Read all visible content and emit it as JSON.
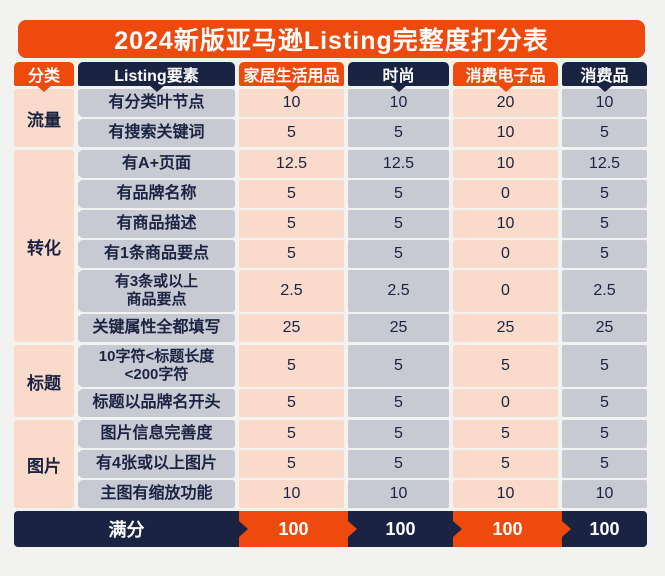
{
  "title": "2024新版亚马逊Listing完整度打分表",
  "colors": {
    "orange": "#EE4A0D",
    "navy": "#1A2342",
    "pink": "#F9DACB",
    "grey": "#C8CAD3",
    "page": "#F2F3F1",
    "text": "#1A2342"
  },
  "table": {
    "columns": [
      {
        "label": "分类",
        "theme": "orange"
      },
      {
        "label": "Listing要素",
        "theme": "navy"
      },
      {
        "label": "家居生活用品",
        "theme": "orange"
      },
      {
        "label": "时尚",
        "theme": "navy"
      },
      {
        "label": "消费电子品",
        "theme": "orange"
      },
      {
        "label": "消费品",
        "theme": "navy"
      }
    ],
    "groups": [
      {
        "category": "流量",
        "rows": [
          {
            "label": "有分类叶节点",
            "values": [
              10,
              10,
              20,
              10
            ]
          },
          {
            "label": "有搜索关键词",
            "values": [
              5,
              5,
              10,
              5
            ]
          }
        ]
      },
      {
        "category": "转化",
        "rows": [
          {
            "label": "有A+页面",
            "values": [
              12.5,
              12.5,
              10,
              12.5
            ]
          },
          {
            "label": "有品牌名称",
            "values": [
              5,
              5,
              0,
              5
            ]
          },
          {
            "label": "有商品描述",
            "values": [
              5,
              5,
              10,
              5
            ]
          },
          {
            "label": "有1条商品要点",
            "values": [
              5,
              5,
              0,
              5
            ]
          },
          {
            "label": "有3条或以上\n商品要点",
            "values": [
              2.5,
              2.5,
              0,
              2.5
            ],
            "twoline": true
          },
          {
            "label": "关键属性全都填写",
            "values": [
              25,
              25,
              25,
              25
            ]
          }
        ]
      },
      {
        "category": "标题",
        "rows": [
          {
            "label": "10字符<标题长度\n<200字符",
            "values": [
              5,
              5,
              5,
              5
            ],
            "twoline": true
          },
          {
            "label": "标题以品牌名开头",
            "values": [
              5,
              5,
              0,
              5
            ]
          }
        ]
      },
      {
        "category": "图片",
        "rows": [
          {
            "label": "图片信息完善度",
            "values": [
              5,
              5,
              5,
              5
            ]
          },
          {
            "label": "有4张或以上图片",
            "values": [
              5,
              5,
              5,
              5
            ]
          },
          {
            "label": "主图有缩放功能",
            "values": [
              10,
              10,
              10,
              10
            ]
          }
        ]
      }
    ],
    "footer": {
      "label": "满分",
      "values": [
        100,
        100,
        100,
        100
      ]
    }
  },
  "chart_data": {
    "type": "table",
    "title": "2024新版亚马逊Listing完整度打分表",
    "columns": [
      "分类",
      "Listing要素",
      "家居生活用品",
      "时尚",
      "消费电子品",
      "消费品"
    ],
    "rows": [
      [
        "流量",
        "有分类叶节点",
        10,
        10,
        20,
        10
      ],
      [
        "流量",
        "有搜索关键词",
        5,
        5,
        10,
        5
      ],
      [
        "转化",
        "有A+页面",
        12.5,
        12.5,
        10,
        12.5
      ],
      [
        "转化",
        "有品牌名称",
        5,
        5,
        0,
        5
      ],
      [
        "转化",
        "有商品描述",
        5,
        5,
        10,
        5
      ],
      [
        "转化",
        "有1条商品要点",
        5,
        5,
        0,
        5
      ],
      [
        "转化",
        "有3条或以上商品要点",
        2.5,
        2.5,
        0,
        2.5
      ],
      [
        "转化",
        "关键属性全都填写",
        25,
        25,
        25,
        25
      ],
      [
        "标题",
        "10字符<标题长度<200字符",
        5,
        5,
        5,
        5
      ],
      [
        "标题",
        "标题以品牌名开头",
        5,
        5,
        0,
        5
      ],
      [
        "图片",
        "图片信息完善度",
        5,
        5,
        5,
        5
      ],
      [
        "图片",
        "有4张或以上图片",
        5,
        5,
        5,
        5
      ],
      [
        "图片",
        "主图有缩放功能",
        10,
        10,
        10,
        10
      ],
      [
        "满分",
        "",
        100,
        100,
        100,
        100
      ]
    ]
  }
}
